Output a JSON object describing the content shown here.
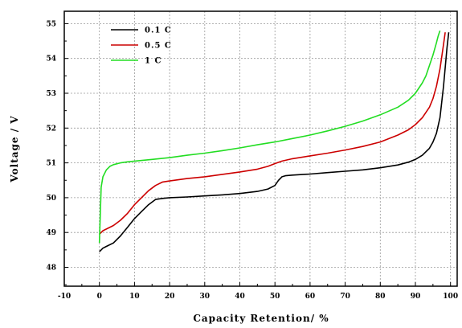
{
  "chart_data": {
    "type": "line",
    "xlabel": "Capacity Retention/ %",
    "ylabel": "Voltage / V",
    "xlim": [
      -10,
      102
    ],
    "ylim": [
      47.5,
      55.3
    ],
    "xticks": [
      -10,
      0,
      10,
      20,
      30,
      40,
      50,
      60,
      70,
      80,
      90,
      100
    ],
    "yticks": [
      48,
      49,
      50,
      51,
      52,
      53,
      54,
      55
    ],
    "grid": true,
    "legend": "top-left",
    "series": [
      {
        "name": "0.1 C",
        "color": "#000000",
        "x": [
          0,
          0.5,
          1,
          2,
          4,
          6,
          8,
          10,
          12,
          14,
          16,
          18,
          20,
          25,
          30,
          35,
          40,
          45,
          48,
          50,
          51,
          52,
          53,
          55,
          60,
          65,
          70,
          75,
          80,
          85,
          88,
          90,
          92,
          94,
          95,
          96,
          97,
          98,
          99,
          99.5
        ],
        "y": [
          48.45,
          48.5,
          48.55,
          48.6,
          48.7,
          48.9,
          49.15,
          49.4,
          49.6,
          49.8,
          49.95,
          49.98,
          50.0,
          50.02,
          50.05,
          50.08,
          50.12,
          50.18,
          50.25,
          50.35,
          50.5,
          50.6,
          50.63,
          50.65,
          50.68,
          50.72,
          50.76,
          50.8,
          50.86,
          50.94,
          51.02,
          51.1,
          51.22,
          51.42,
          51.6,
          51.85,
          52.3,
          53.2,
          54.3,
          54.75
        ]
      },
      {
        "name": "0.5 C",
        "color": "#cc0000",
        "x": [
          0,
          0.5,
          1,
          2,
          4,
          6,
          8,
          10,
          12,
          14,
          16,
          18,
          20,
          25,
          30,
          35,
          40,
          45,
          48,
          50,
          52,
          55,
          60,
          65,
          70,
          75,
          80,
          85,
          88,
          90,
          92,
          94,
          95,
          96,
          97,
          98,
          98.5
        ],
        "y": [
          48.95,
          49.0,
          49.05,
          49.1,
          49.2,
          49.35,
          49.55,
          49.8,
          50.0,
          50.2,
          50.35,
          50.45,
          50.48,
          50.55,
          50.6,
          50.67,
          50.74,
          50.82,
          50.9,
          50.98,
          51.05,
          51.12,
          51.2,
          51.28,
          51.37,
          51.47,
          51.6,
          51.8,
          51.95,
          52.1,
          52.3,
          52.6,
          52.85,
          53.2,
          53.7,
          54.4,
          54.75
        ]
      },
      {
        "name": "1 C",
        "color": "#22dd22",
        "x": [
          0,
          0.5,
          1,
          2,
          3,
          4,
          6,
          8,
          10,
          15,
          20,
          25,
          30,
          35,
          40,
          45,
          50,
          55,
          60,
          65,
          70,
          75,
          80,
          85,
          88,
          90,
          92,
          93,
          94,
          95,
          96,
          96.5,
          97
        ],
        "y": [
          48.7,
          50.3,
          50.6,
          50.8,
          50.9,
          50.95,
          51.0,
          51.03,
          51.05,
          51.1,
          51.15,
          51.22,
          51.28,
          51.35,
          51.43,
          51.52,
          51.6,
          51.7,
          51.8,
          51.92,
          52.05,
          52.2,
          52.38,
          52.6,
          52.8,
          53.0,
          53.3,
          53.5,
          53.8,
          54.1,
          54.45,
          54.65,
          54.8
        ]
      }
    ]
  }
}
